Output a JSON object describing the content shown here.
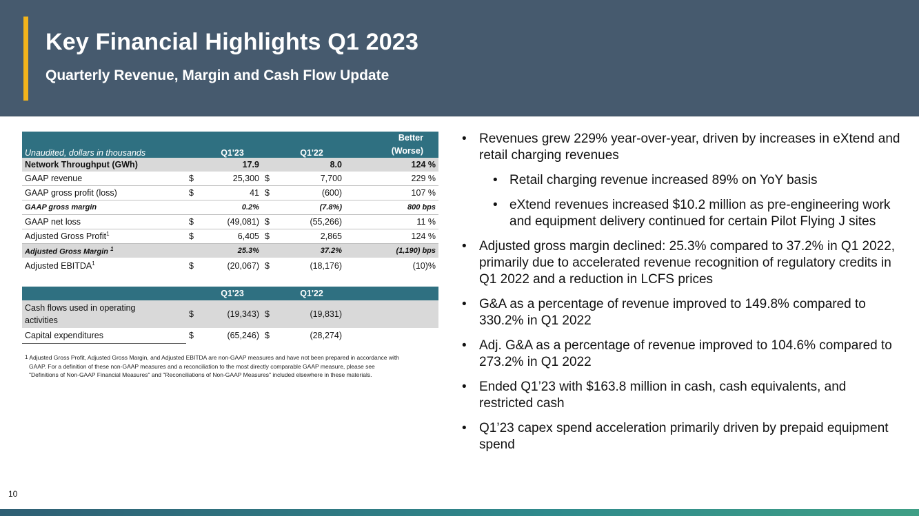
{
  "header": {
    "title": "Key Financial Highlights Q1 2023",
    "subtitle": "Quarterly Revenue, Margin and Cash Flow Update"
  },
  "table1": {
    "caption": "Unaudited, dollars in thousands",
    "col_q123": "Q1'23",
    "col_q122": "Q1'22",
    "col_better_1": "Better",
    "col_better_2": "(Worse)",
    "rows": [
      {
        "label": "Network Throughput (GWh)",
        "sup": "",
        "d1": "",
        "v1": "17.9",
        "d2": "",
        "v2": "8.0",
        "chg": "124 %"
      },
      {
        "label": "GAAP revenue",
        "sup": "",
        "d1": "$",
        "v1": "25,300",
        "d2": "$",
        "v2": "7,700",
        "chg": "229 %"
      },
      {
        "label": "GAAP gross profit (loss)",
        "sup": "",
        "d1": "$",
        "v1": "41",
        "d2": "$",
        "v2": "(600)",
        "chg": "107 %"
      },
      {
        "label": "GAAP gross margin",
        "sup": "",
        "d1": "",
        "v1": "0.2%",
        "d2": "",
        "v2": "(7.8%)",
        "chg": "800 bps"
      },
      {
        "label": "GAAP net loss",
        "sup": "",
        "d1": "$",
        "v1": "(49,081)",
        "d2": "$",
        "v2": "(55,266)",
        "chg": "11 %"
      },
      {
        "label": "Adjusted Gross Profit",
        "sup": "1",
        "d1": "$",
        "v1": "6,405",
        "d2": "$",
        "v2": "2,865",
        "chg": "124 %"
      },
      {
        "label": "Adjusted Gross Margin",
        "sup": "1",
        "d1": "",
        "v1": "25.3%",
        "d2": "",
        "v2": "37.2%",
        "chg": "(1,190) bps"
      },
      {
        "label": "Adjusted EBITDA",
        "sup": "1",
        "d1": "$",
        "v1": "(20,067)",
        "d2": "$",
        "v2": "(18,176)",
        "chg": "(10)%"
      }
    ]
  },
  "table2": {
    "col_q123": "Q1'23",
    "col_q122": "Q1'22",
    "rows": [
      {
        "label_1": "Cash flows used in operating",
        "label_2": "activities",
        "d1": "$",
        "v1": "(19,343)",
        "d2": "$",
        "v2": "(19,831)"
      },
      {
        "label_1": "Capital expenditures",
        "label_2": "",
        "d1": "$",
        "v1": "(65,246)",
        "d2": "$",
        "v2": "(28,274)"
      }
    ]
  },
  "footnote": {
    "mark": "1",
    "line1": "Adjusted Gross Profit, Adjusted Gross Margin, and Adjusted EBITDA are non-GAAP measures and have not been prepared in accordance with",
    "line2": "GAAP.  For a definition of these non-GAAP measures and a reconciliation to the most directly comparable GAAP measure, please see",
    "line3": "\"Definitions of Non-GAAP Financial Measures\" and \"Reconciliations of Non-GAAP Measures\" included elsewhere in these materials."
  },
  "bullets": [
    {
      "level": 1,
      "text": "Revenues grew 229% year-over-year, driven by increases in eXtend and retail charging  revenues"
    },
    {
      "level": 2,
      "text": "Retail charging revenue increased 89% on YoY basis"
    },
    {
      "level": 2,
      "text": "eXtend revenues increased $10.2 million as pre-engineering work and equipment delivery continued for certain Pilot Flying J sites"
    },
    {
      "level": 1,
      "text": "Adjusted gross margin declined: 25.3% compared to 37.2% in Q1 2022, primarily due to accelerated revenue recognition of regulatory credits in Q1 2022 and a reduction in LCFS prices"
    },
    {
      "level": 1,
      "text": "G&A as a percentage of revenue improved to 149.8% compared to 330.2% in Q1 2022"
    },
    {
      "level": 1,
      "text": "Adj. G&A as a percentage of revenue improved to 104.6% compared to 273.2% in Q1 2022"
    },
    {
      "level": 1,
      "text": "Ended Q1’23 with $163.8 million in cash, cash equivalents, and restricted cash"
    },
    {
      "level": 1,
      "text": "Q1’23 capex spend acceleration primarily driven by prepaid equipment spend"
    }
  ],
  "bullet_glyph": "•",
  "page_number": "10",
  "colors": {
    "header_bg": "#465a6e",
    "accent": "#f3b41b",
    "table_header": "#2f7081",
    "row_shade": "#d9d9d9"
  }
}
